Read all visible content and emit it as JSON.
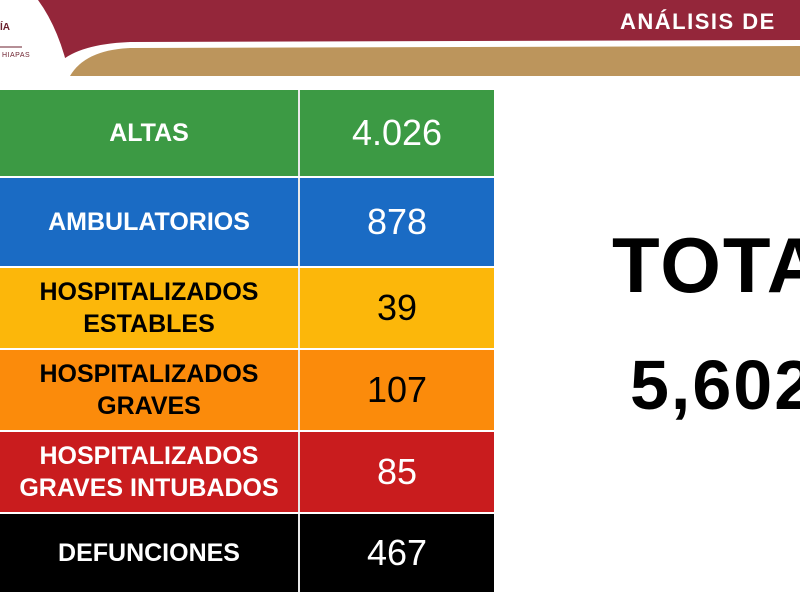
{
  "header": {
    "logo_line_1": "ÍA",
    "logo_line_2": "HIAPAS",
    "title": "ANÁLISIS DE"
  },
  "table": {
    "rows": [
      {
        "label": "ALTAS",
        "value": "4.026",
        "bg": "#3c9a44",
        "fg": "#ffffff",
        "vfg": "#ffffff"
      },
      {
        "label": "AMBULATORIOS",
        "value": "878",
        "bg": "#1a6bc4",
        "fg": "#ffffff",
        "vfg": "#ffffff"
      },
      {
        "label": "HOSPITALIZADOS ESTABLES",
        "value": "39",
        "bg": "#fcb70a",
        "fg": "#000000",
        "vfg": "#000000"
      },
      {
        "label": "HOSPITALIZADOS GRAVES",
        "value": "107",
        "bg": "#fb8b0b",
        "fg": "#000000",
        "vfg": "#000000"
      },
      {
        "label": "HOSPITALIZADOS GRAVES INTUBADOS",
        "value": "85",
        "bg": "#c91c1e",
        "fg": "#ffffff",
        "vfg": "#ffffff"
      },
      {
        "label": "DEFUNCIONES",
        "value": "467",
        "bg": "#000000",
        "fg": "#ffffff",
        "vfg": "#ffffff"
      }
    ]
  },
  "total": {
    "label": "TOTA",
    "value": "5,602"
  },
  "colors": {
    "banner_maroon": "#94263a",
    "banner_gold": "#bc955c"
  }
}
